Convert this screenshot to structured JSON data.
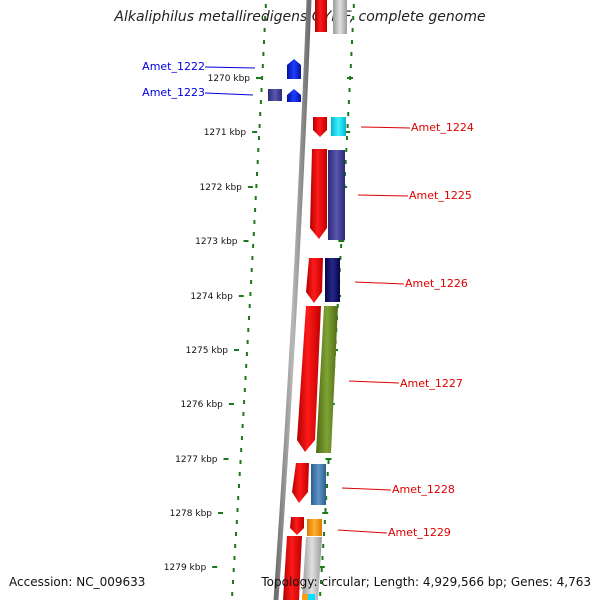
{
  "title": "Alkaliphilus metalliredigens QYMF, complete genome",
  "accession": "Accession: NC_009633",
  "summary": "Topology: circular; Length: 4,929,566 bp; Genes: 4,763",
  "ticks": [
    {
      "label": "1270 kbp"
    },
    {
      "label": "1271 kbp"
    },
    {
      "label": "1272 kbp"
    },
    {
      "label": "1273 kbp"
    },
    {
      "label": "1274 kbp"
    },
    {
      "label": "1275 kbp"
    },
    {
      "label": "1276 kbp"
    },
    {
      "label": "1277 kbp"
    },
    {
      "label": "1278 kbp"
    },
    {
      "label": "1279 kbp"
    }
  ],
  "genes_left": [
    {
      "label": "Amet_1222",
      "color": "#0000ee"
    },
    {
      "label": "Amet_1223",
      "color": "#0000ee"
    }
  ],
  "genes_right": [
    {
      "label": "Amet_1224",
      "color": "#dd0000"
    },
    {
      "label": "Amet_1225",
      "color": "#dd0000"
    },
    {
      "label": "Amet_1226",
      "color": "#dd0000"
    },
    {
      "label": "Amet_1227",
      "color": "#dd0000"
    },
    {
      "label": "Amet_1228",
      "color": "#dd0000"
    },
    {
      "label": "Amet_1229",
      "color": "#dd0000"
    }
  ],
  "colors": {
    "backbone": "#888888",
    "dotted_ring": "#1a7a1a",
    "gene_red": "#ff0000",
    "gene_blue": "#0022ee"
  }
}
